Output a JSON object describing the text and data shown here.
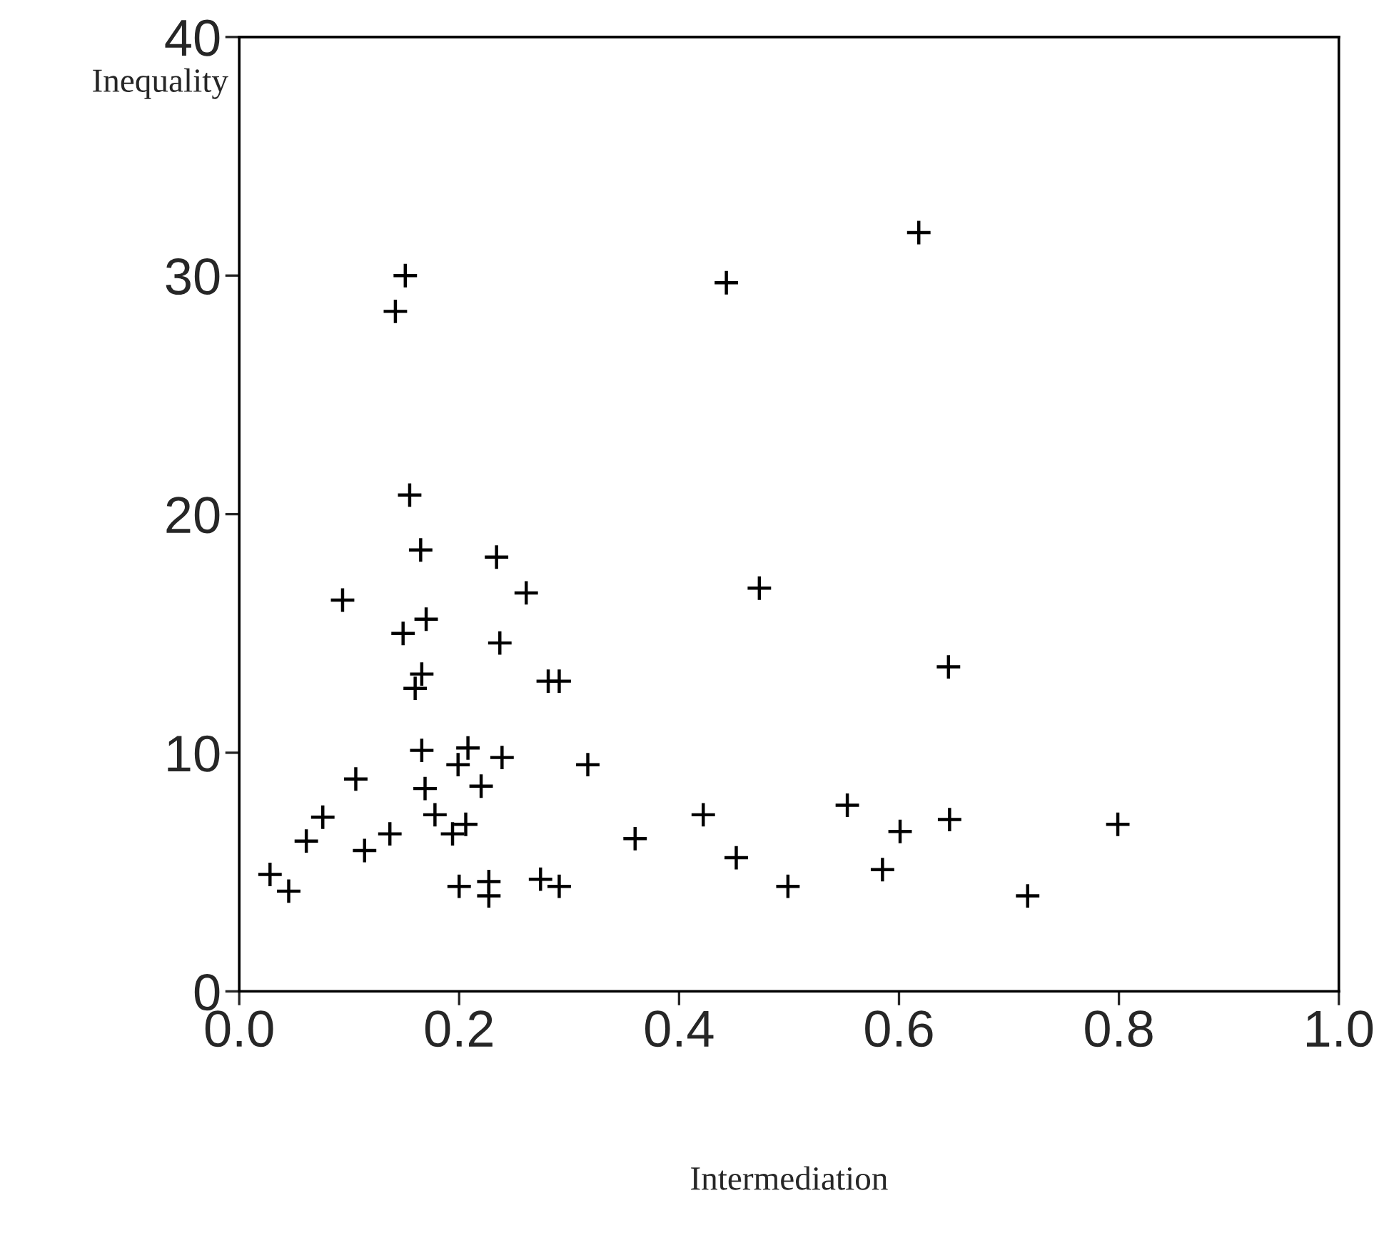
{
  "chart_data": {
    "type": "scatter",
    "xlabel": "Intermediation",
    "ylabel": "Inequality",
    "x": [
      0.028,
      0.045,
      0.061,
      0.076,
      0.094,
      0.106,
      0.114,
      0.137,
      0.149,
      0.17,
      0.166,
      0.16,
      0.237,
      0.281,
      0.291,
      0.166,
      0.208,
      0.199,
      0.239,
      0.317,
      0.169,
      0.22,
      0.178,
      0.206,
      0.194,
      0.36,
      0.2,
      0.227,
      0.227,
      0.274,
      0.291,
      0.151,
      0.142,
      0.155,
      0.165,
      0.234,
      0.261,
      0.618,
      0.443,
      0.473,
      0.645,
      0.422,
      0.452,
      0.499,
      0.553,
      0.585,
      0.601,
      0.646,
      0.717,
      0.799
    ],
    "values": [
      4.9,
      4.2,
      6.3,
      7.3,
      16.4,
      8.9,
      5.9,
      6.6,
      15.0,
      15.6,
      13.3,
      12.7,
      14.6,
      13.0,
      13.0,
      10.1,
      10.2,
      9.5,
      9.8,
      9.5,
      8.5,
      8.6,
      7.4,
      7.0,
      6.6,
      6.4,
      4.4,
      4.6,
      4.0,
      4.7,
      4.4,
      30.0,
      28.5,
      20.8,
      18.5,
      18.2,
      16.7,
      31.8,
      29.7,
      16.9,
      13.6,
      7.4,
      5.6,
      4.4,
      7.8,
      5.1,
      6.7,
      7.2,
      4.0,
      7.0
    ],
    "color": "#000000",
    "marker": "cross",
    "xlim": [
      0,
      1.0
    ],
    "xticks": [
      {
        "value": 0,
        "label": "0.0"
      },
      0.2,
      0.4,
      0.6,
      0.8,
      {
        "value": 1.0,
        "label": "1.0"
      }
    ],
    "ylim": [
      0,
      40
    ],
    "yticks": [
      0,
      10,
      20,
      30,
      40
    ],
    "grid": false
  }
}
